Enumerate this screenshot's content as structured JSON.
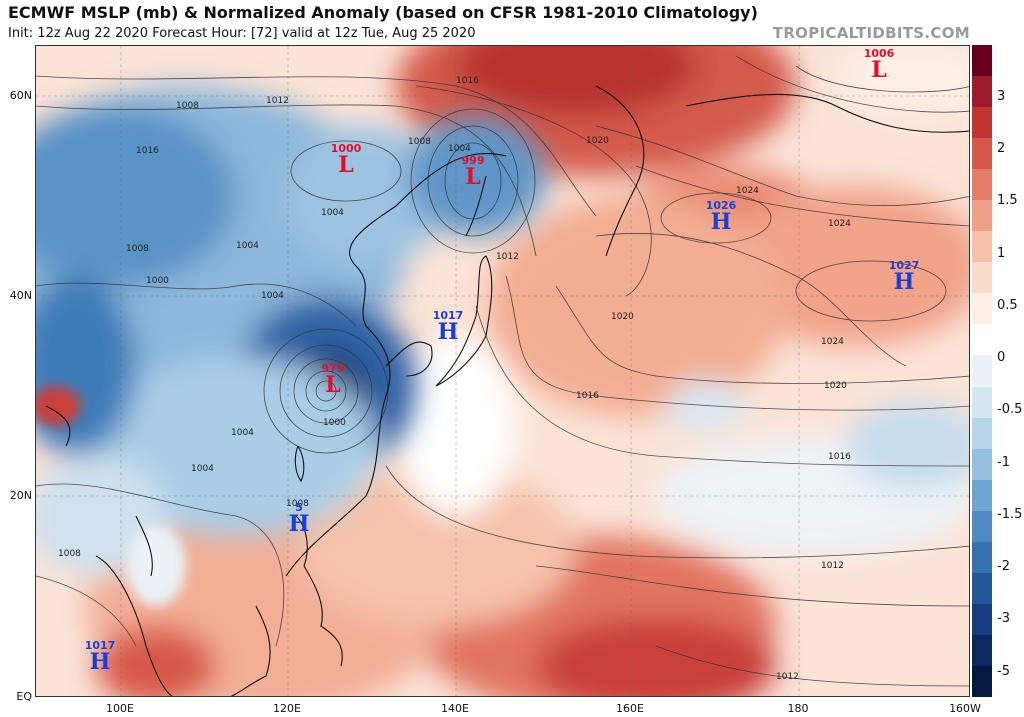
{
  "header": {
    "title": "ECMWF MSLP (mb) & Normalized Anomaly (based on CFSR 1981-2010 Climatology)",
    "subtitle": "Init: 12z Aug 22 2020   Forecast Hour: [72]   valid at 12z Tue, Aug 25 2020",
    "brand": "TROPICALTIDBITS.COM"
  },
  "axes": {
    "lat_labels": [
      "60N",
      "40N",
      "20N",
      "EQ"
    ],
    "lon_labels": [
      "100E",
      "120E",
      "140E",
      "160E",
      "180",
      "160W"
    ]
  },
  "colorbar": {
    "ticks": [
      "3",
      "2",
      "1.5",
      "1",
      "0.5",
      "0",
      "-0.5",
      "-1",
      "-1.5",
      "-2",
      "-3",
      "-5"
    ],
    "colors": [
      "#67001f",
      "#9e1b2c",
      "#c2342f",
      "#d6564a",
      "#e57c6a",
      "#f0a089",
      "#f6c1a8",
      "#fadbcb",
      "#fdeee6",
      "#ffffff",
      "#eaf2f8",
      "#d4e6f1",
      "#b8d5ea",
      "#95c0df",
      "#6fa6d1",
      "#4f8cc2",
      "#3571b0",
      "#24569a",
      "#173d80",
      "#0b2860",
      "#041840"
    ]
  },
  "systems": [
    {
      "type": "L",
      "value": "1006"
    },
    {
      "type": "L",
      "value": "1000"
    },
    {
      "type": "L",
      "value": "999"
    },
    {
      "type": "L",
      "value": "979"
    },
    {
      "type": "H",
      "value": "1026"
    },
    {
      "type": "H",
      "value": "1027"
    },
    {
      "type": "H",
      "value": "1017"
    },
    {
      "type": "H",
      "value": "1017"
    },
    {
      "type": "H",
      "value": "5"
    }
  ],
  "isobar_labels": [
    "1016",
    "1012",
    "1008",
    "1008",
    "1004",
    "1004",
    "1000",
    "1004",
    "1008",
    "1012",
    "1016",
    "1020",
    "1020",
    "1024",
    "1024",
    "1024",
    "1020",
    "1016",
    "1012",
    "1012",
    "1016",
    "1004",
    "1004",
    "1008",
    "1008",
    "1000",
    "1004"
  ]
}
